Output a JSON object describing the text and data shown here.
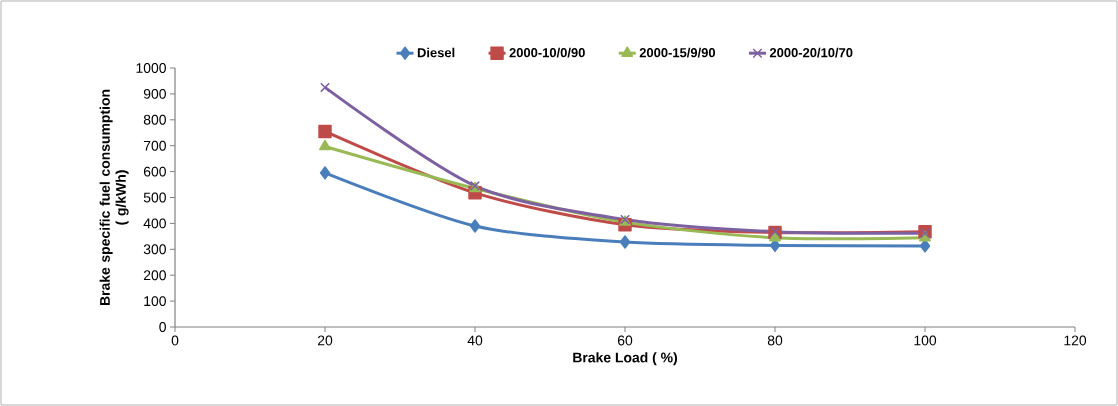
{
  "chart_data": {
    "type": "line",
    "xlabel": "Brake Load ( %)",
    "ylabel": "Brake specific fuel consumption\n( g/kWh)",
    "x": [
      20,
      40,
      60,
      80,
      100
    ],
    "series": [
      {
        "name": "Diesel",
        "color": "#4a7ebb",
        "marker": "diamond",
        "values": [
          595,
          390,
          328,
          315,
          313
        ]
      },
      {
        "name": "2000-10/0/90",
        "color": "#be4b48",
        "marker": "square",
        "values": [
          755,
          518,
          395,
          365,
          368
        ]
      },
      {
        "name": "2000-15/9/90",
        "color": "#98b954",
        "marker": "triangle",
        "values": [
          697,
          535,
          405,
          345,
          345
        ]
      },
      {
        "name": "2000-20/10/70",
        "color": "#7d60a0",
        "marker": "cross",
        "values": [
          925,
          545,
          415,
          368,
          362
        ]
      }
    ],
    "xlim": [
      0,
      120
    ],
    "xticks": [
      0,
      20,
      40,
      60,
      80,
      100,
      120
    ],
    "ylim": [
      0,
      1000
    ],
    "yticks": [
      0,
      100,
      200,
      300,
      400,
      500,
      600,
      700,
      800,
      900,
      1000
    ],
    "legend": "top",
    "grid": false,
    "line_style": "solid"
  }
}
